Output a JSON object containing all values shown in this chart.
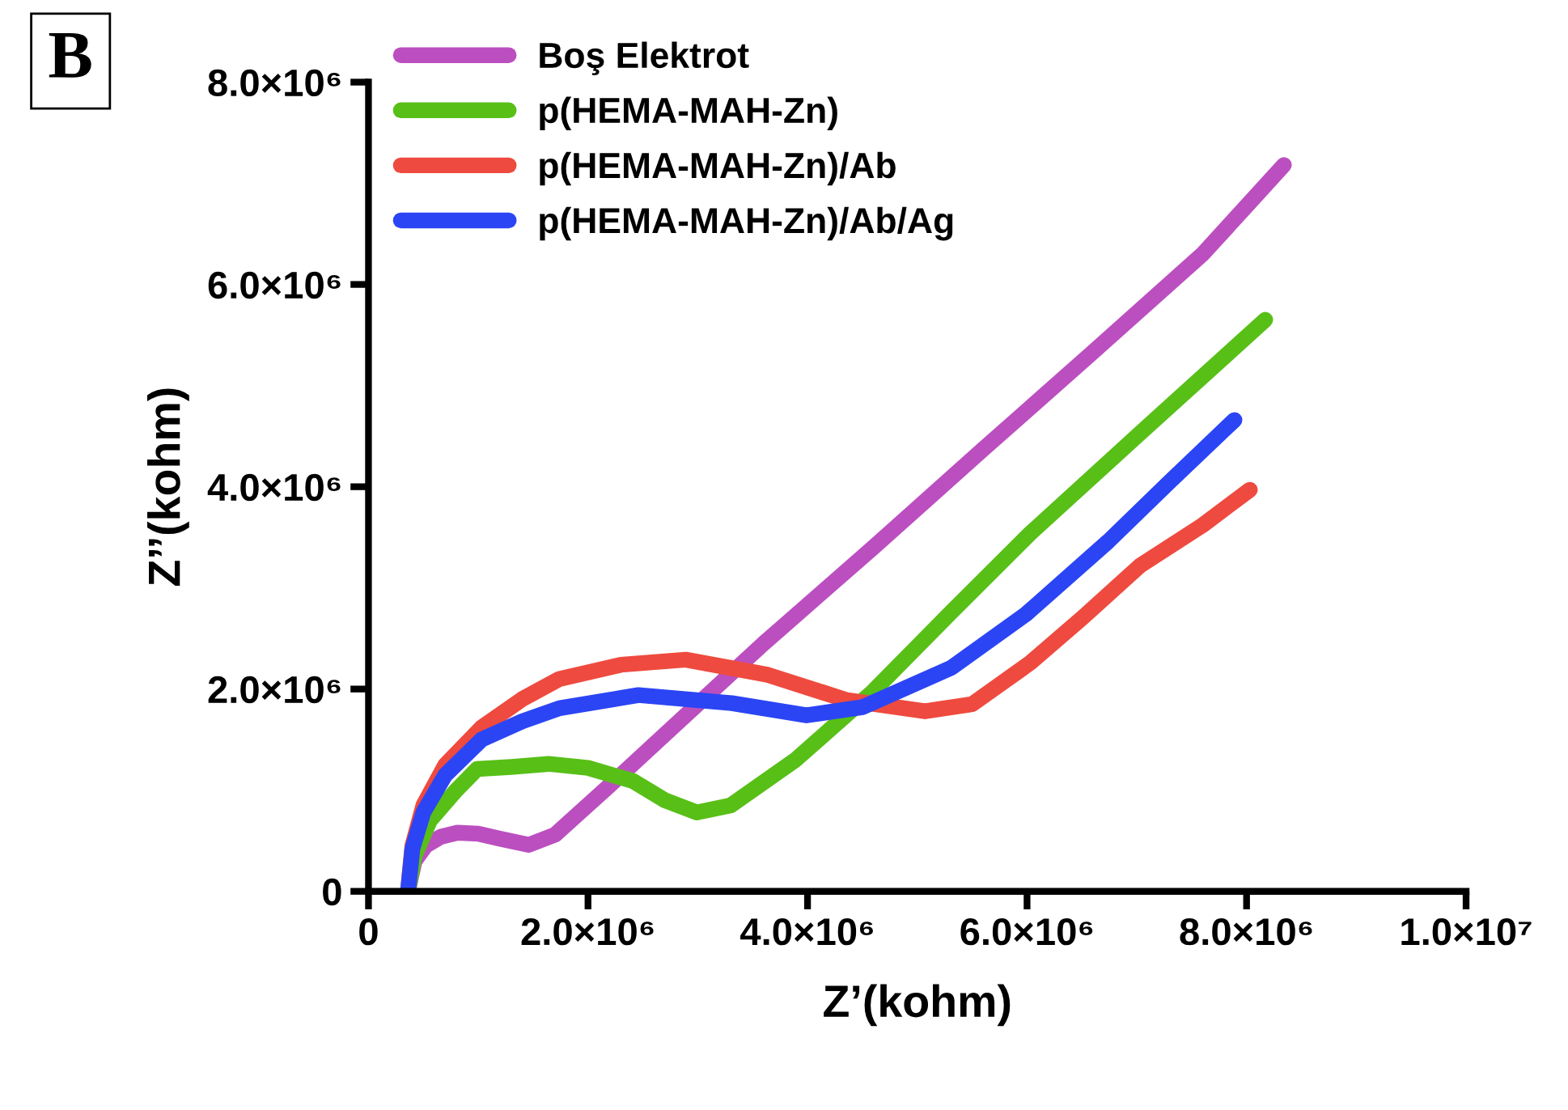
{
  "chart_data": {
    "type": "line",
    "xlabel": "Z’(kohm)",
    "ylabel": "Z’’(kohm)",
    "annotations": [
      "B"
    ],
    "xlim": [
      0,
      10000000
    ],
    "ylim": [
      0,
      8000000
    ],
    "xticks": [
      0,
      {
        "value": 2000000,
        "label": "2.0×10⁶"
      },
      {
        "value": 4000000,
        "label": "4.0×10⁶"
      },
      {
        "value": 6000000,
        "label": "6.0×10⁶"
      },
      {
        "value": 8000000,
        "label": "8.0×10⁶"
      },
      {
        "value": 10000000,
        "label": "1.0×10⁷"
      }
    ],
    "yticks": [
      0,
      {
        "value": 2000000,
        "label": "2.0×10⁶"
      },
      {
        "value": 4000000,
        "label": "4.0×10⁶"
      },
      {
        "value": 6000000,
        "label": "6.0×10⁶"
      },
      {
        "value": 8000000,
        "label": "8.0×10⁶"
      }
    ],
    "grid": false,
    "legend": "top left",
    "marker": "none",
    "line_style": "solid",
    "series": [
      {
        "name": "Boş Elektrot",
        "color": "#bb4fc0",
        "x": [
          360000,
          420000,
          520000,
          660000,
          810000,
          1000000,
          1200000,
          1460000,
          1700000,
          2200000,
          2800000,
          3600000,
          4600000,
          5600000,
          6600000,
          7600000,
          8340000
        ],
        "values": [
          0,
          300000,
          450000,
          540000,
          580000,
          570000,
          520000,
          460000,
          560000,
          1050000,
          1650000,
          2450000,
          3400000,
          4370000,
          5330000,
          6300000,
          7180000
        ]
      },
      {
        "name": "p(HEMA-MAH-Zn)",
        "color": "#58bf17",
        "x": [
          360000,
          420000,
          560000,
          800000,
          990000,
          1300000,
          1640000,
          2000000,
          2410000,
          2700000,
          2990000,
          3300000,
          3890000,
          4600000,
          5300000,
          6030000,
          7000000,
          8170000
        ],
        "values": [
          0,
          350000,
          700000,
          1000000,
          1210000,
          1230000,
          1260000,
          1220000,
          1090000,
          900000,
          780000,
          850000,
          1300000,
          1980000,
          2750000,
          3540000,
          4500000,
          5650000
        ]
      },
      {
        "name": "p(HEMA-MAH-Zn)/Ab",
        "color": "#ef4a3f",
        "x": [
          360000,
          400000,
          500000,
          700000,
          1030000,
          1400000,
          1740000,
          2300000,
          2890000,
          3640000,
          4360000,
          5070000,
          5500000,
          6030000,
          6500000,
          7030000,
          7600000,
          8030000
        ],
        "values": [
          0,
          450000,
          850000,
          1250000,
          1620000,
          1900000,
          2100000,
          2240000,
          2290000,
          2140000,
          1890000,
          1780000,
          1850000,
          2260000,
          2700000,
          3220000,
          3620000,
          3970000
        ]
      },
      {
        "name": "p(HEMA-MAH-Zn)/Ab/Ag",
        "color": "#2b45f5",
        "x": [
          360000,
          400000,
          500000,
          700000,
          1030000,
          1400000,
          1740000,
          2460000,
          3310000,
          3990000,
          4500000,
          5310000,
          5990000,
          6740000,
          7300000,
          7890000
        ],
        "values": [
          0,
          420000,
          780000,
          1150000,
          1500000,
          1680000,
          1810000,
          1940000,
          1860000,
          1740000,
          1820000,
          2210000,
          2740000,
          3460000,
          4050000,
          4660000
        ]
      }
    ]
  }
}
